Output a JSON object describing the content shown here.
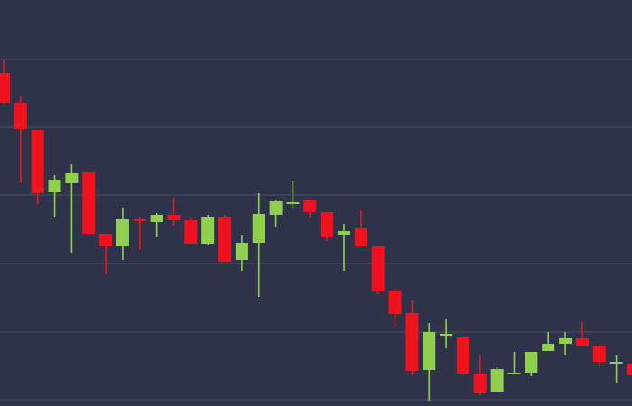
{
  "chart_data": {
    "type": "candlestick",
    "title": "",
    "xlabel": "",
    "ylabel": "",
    "ylim": [
      0,
      450
    ],
    "grid": true,
    "gridlines": [
      384,
      309,
      234,
      158,
      82,
      7
    ],
    "colors": {
      "background": "#2f3349",
      "grid": "#4a4f66",
      "up": "#8fd14f",
      "down": "#f0131e"
    },
    "candles": [
      {
        "open": 369,
        "close": 336,
        "high": 384,
        "low": 335
      },
      {
        "open": 336,
        "close": 307,
        "high": 344,
        "low": 247
      },
      {
        "open": 306,
        "close": 236,
        "high": 306,
        "low": 224
      },
      {
        "open": 237,
        "close": 251,
        "high": 256,
        "low": 209
      },
      {
        "open": 247,
        "close": 258,
        "high": 268,
        "low": 170
      },
      {
        "open": 259,
        "close": 191,
        "high": 259,
        "low": 191
      },
      {
        "open": 191,
        "close": 177,
        "high": 191,
        "low": 146
      },
      {
        "open": 177,
        "close": 207,
        "high": 220,
        "low": 162
      },
      {
        "open": 207,
        "close": 205,
        "high": 210,
        "low": 174
      },
      {
        "open": 204,
        "close": 212,
        "high": 214,
        "low": 187
      },
      {
        "open": 212,
        "close": 206,
        "high": 230,
        "low": 200
      },
      {
        "open": 206,
        "close": 180,
        "high": 209,
        "low": 180
      },
      {
        "open": 180,
        "close": 209,
        "high": 212,
        "low": 178
      },
      {
        "open": 209,
        "close": 160,
        "high": 212,
        "low": 160
      },
      {
        "open": 162,
        "close": 181,
        "high": 189,
        "low": 150
      },
      {
        "open": 181,
        "close": 213,
        "high": 236,
        "low": 121
      },
      {
        "open": 212,
        "close": 227,
        "high": 228,
        "low": 198
      },
      {
        "open": 226,
        "close": 226,
        "high": 249,
        "low": 220
      },
      {
        "open": 228,
        "close": 215,
        "high": 228,
        "low": 208
      },
      {
        "open": 215,
        "close": 187,
        "high": 215,
        "low": 183
      },
      {
        "open": 190,
        "close": 194,
        "high": 202,
        "low": 150
      },
      {
        "open": 197,
        "close": 177,
        "high": 217,
        "low": 177
      },
      {
        "open": 177,
        "close": 127,
        "high": 177,
        "low": 124
      },
      {
        "open": 128,
        "close": 102,
        "high": 130,
        "low": 89
      },
      {
        "open": 103,
        "close": 39,
        "high": 117,
        "low": 34
      },
      {
        "open": 40,
        "close": 82,
        "high": 92,
        "low": 6
      },
      {
        "open": 80,
        "close": 80,
        "high": 96,
        "low": 64
      },
      {
        "open": 76,
        "close": 36,
        "high": 76,
        "low": 34
      },
      {
        "open": 36,
        "close": 14,
        "high": 56,
        "low": 12
      },
      {
        "open": 16,
        "close": 41,
        "high": 43,
        "low": 16
      },
      {
        "open": 37,
        "close": 37,
        "high": 60,
        "low": 37
      },
      {
        "open": 37,
        "close": 60,
        "high": 60,
        "low": 33
      },
      {
        "open": 61,
        "close": 69,
        "high": 82,
        "low": 61
      },
      {
        "open": 69,
        "close": 75,
        "high": 82,
        "low": 56
      },
      {
        "open": 75,
        "close": 66,
        "high": 93,
        "low": 66
      },
      {
        "open": 66,
        "close": 49,
        "high": 68,
        "low": 42
      },
      {
        "open": 49,
        "close": 49,
        "high": 56,
        "low": 26
      },
      {
        "open": 46,
        "close": 34,
        "high": 54,
        "low": 6
      }
    ]
  }
}
